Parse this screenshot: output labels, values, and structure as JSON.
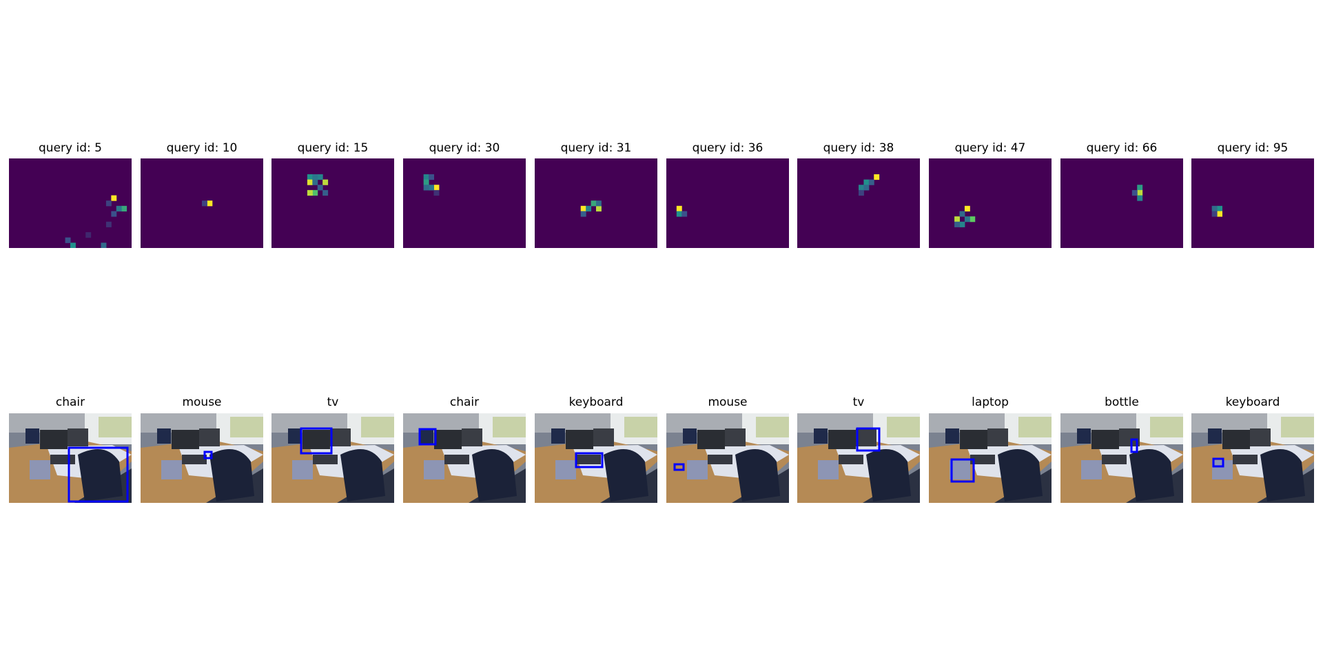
{
  "chart_data": {
    "type": "heatmap",
    "colormap": "viridis",
    "rows": [
      {
        "kind": "attention-map",
        "titles": [
          "query id: 5",
          "query id: 10",
          "query id: 15",
          "query id: 30",
          "query id: 31",
          "query id: 36",
          "query id: 38",
          "query id: 47",
          "query id: 66",
          "query id: 95"
        ],
        "query_ids": [
          5,
          10,
          15,
          30,
          31,
          36,
          38,
          47,
          66,
          95
        ]
      },
      {
        "kind": "detection",
        "titles": [
          "chair",
          "mouse",
          "tv",
          "chair",
          "keyboard",
          "mouse",
          "tv",
          "laptop",
          "bottle",
          "keyboard"
        ],
        "box_color": "#0000ff"
      }
    ],
    "grid": false,
    "axes": "off"
  }
}
